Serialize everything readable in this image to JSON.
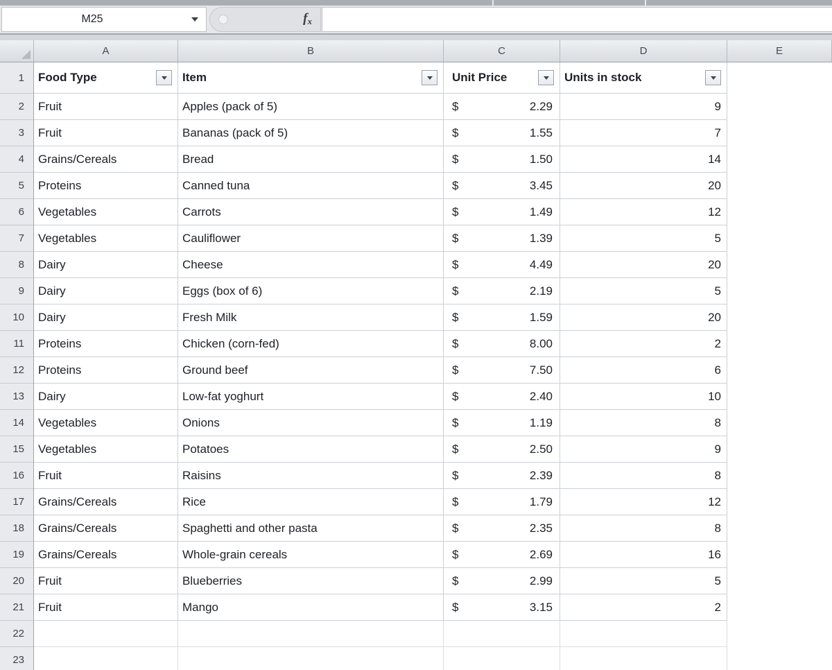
{
  "name_box": {
    "value": "M25"
  },
  "formula_bar": {
    "value": "",
    "fx_label": "f",
    "fx_sub": "x"
  },
  "sheet": {
    "column_letters": [
      "A",
      "B",
      "C",
      "D",
      "E"
    ],
    "row_numbers": [
      1,
      2,
      3,
      4,
      5,
      6,
      7,
      8,
      9,
      10,
      11,
      12,
      13,
      14,
      15,
      16,
      17,
      18,
      19,
      20,
      21,
      22,
      23
    ],
    "table": {
      "columns": [
        "Food Type",
        "Item",
        "Unit Price",
        "Units in stock"
      ],
      "currency_symbol": "$",
      "rows": [
        {
          "food_type": "Fruit",
          "item": "Apples (pack of 5)",
          "unit_price": "2.29",
          "units_in_stock": "9"
        },
        {
          "food_type": "Fruit",
          "item": "Bananas (pack of 5)",
          "unit_price": "1.55",
          "units_in_stock": "7"
        },
        {
          "food_type": "Grains/Cereals",
          "item": "Bread",
          "unit_price": "1.50",
          "units_in_stock": "14"
        },
        {
          "food_type": "Proteins",
          "item": "Canned tuna",
          "unit_price": "3.45",
          "units_in_stock": "20"
        },
        {
          "food_type": "Vegetables",
          "item": "Carrots",
          "unit_price": "1.49",
          "units_in_stock": "12"
        },
        {
          "food_type": "Vegetables",
          "item": "Cauliflower",
          "unit_price": "1.39",
          "units_in_stock": "5"
        },
        {
          "food_type": "Dairy",
          "item": "Cheese",
          "unit_price": "4.49",
          "units_in_stock": "20"
        },
        {
          "food_type": "Dairy",
          "item": "Eggs (box of 6)",
          "unit_price": "2.19",
          "units_in_stock": "5"
        },
        {
          "food_type": "Dairy",
          "item": "Fresh Milk",
          "unit_price": "1.59",
          "units_in_stock": "20"
        },
        {
          "food_type": "Proteins",
          "item": "Chicken (corn-fed)",
          "unit_price": "8.00",
          "units_in_stock": "2"
        },
        {
          "food_type": "Proteins",
          "item": "Ground beef",
          "unit_price": "7.50",
          "units_in_stock": "6"
        },
        {
          "food_type": "Dairy",
          "item": "Low-fat yoghurt",
          "unit_price": "2.40",
          "units_in_stock": "10"
        },
        {
          "food_type": "Vegetables",
          "item": "Onions",
          "unit_price": "1.19",
          "units_in_stock": "8"
        },
        {
          "food_type": "Vegetables",
          "item": "Potatoes",
          "unit_price": "2.50",
          "units_in_stock": "9"
        },
        {
          "food_type": "Fruit",
          "item": "Raisins",
          "unit_price": "2.39",
          "units_in_stock": "8"
        },
        {
          "food_type": "Grains/Cereals",
          "item": "Rice",
          "unit_price": "1.79",
          "units_in_stock": "12"
        },
        {
          "food_type": "Grains/Cereals",
          "item": "Spaghetti and other pasta",
          "unit_price": "2.35",
          "units_in_stock": "8"
        },
        {
          "food_type": "Grains/Cereals",
          "item": "Whole-grain cereals",
          "unit_price": "2.69",
          "units_in_stock": "16"
        },
        {
          "food_type": "Fruit",
          "item": "Blueberries",
          "unit_price": "2.99",
          "units_in_stock": "5"
        },
        {
          "food_type": "Fruit",
          "item": "Mango",
          "unit_price": "3.15",
          "units_in_stock": "2"
        }
      ]
    }
  },
  "colors": {
    "header_fill_top": "#eef0f2",
    "header_fill_bottom": "#d9dce0",
    "grid_border": "#cbd0d6"
  }
}
